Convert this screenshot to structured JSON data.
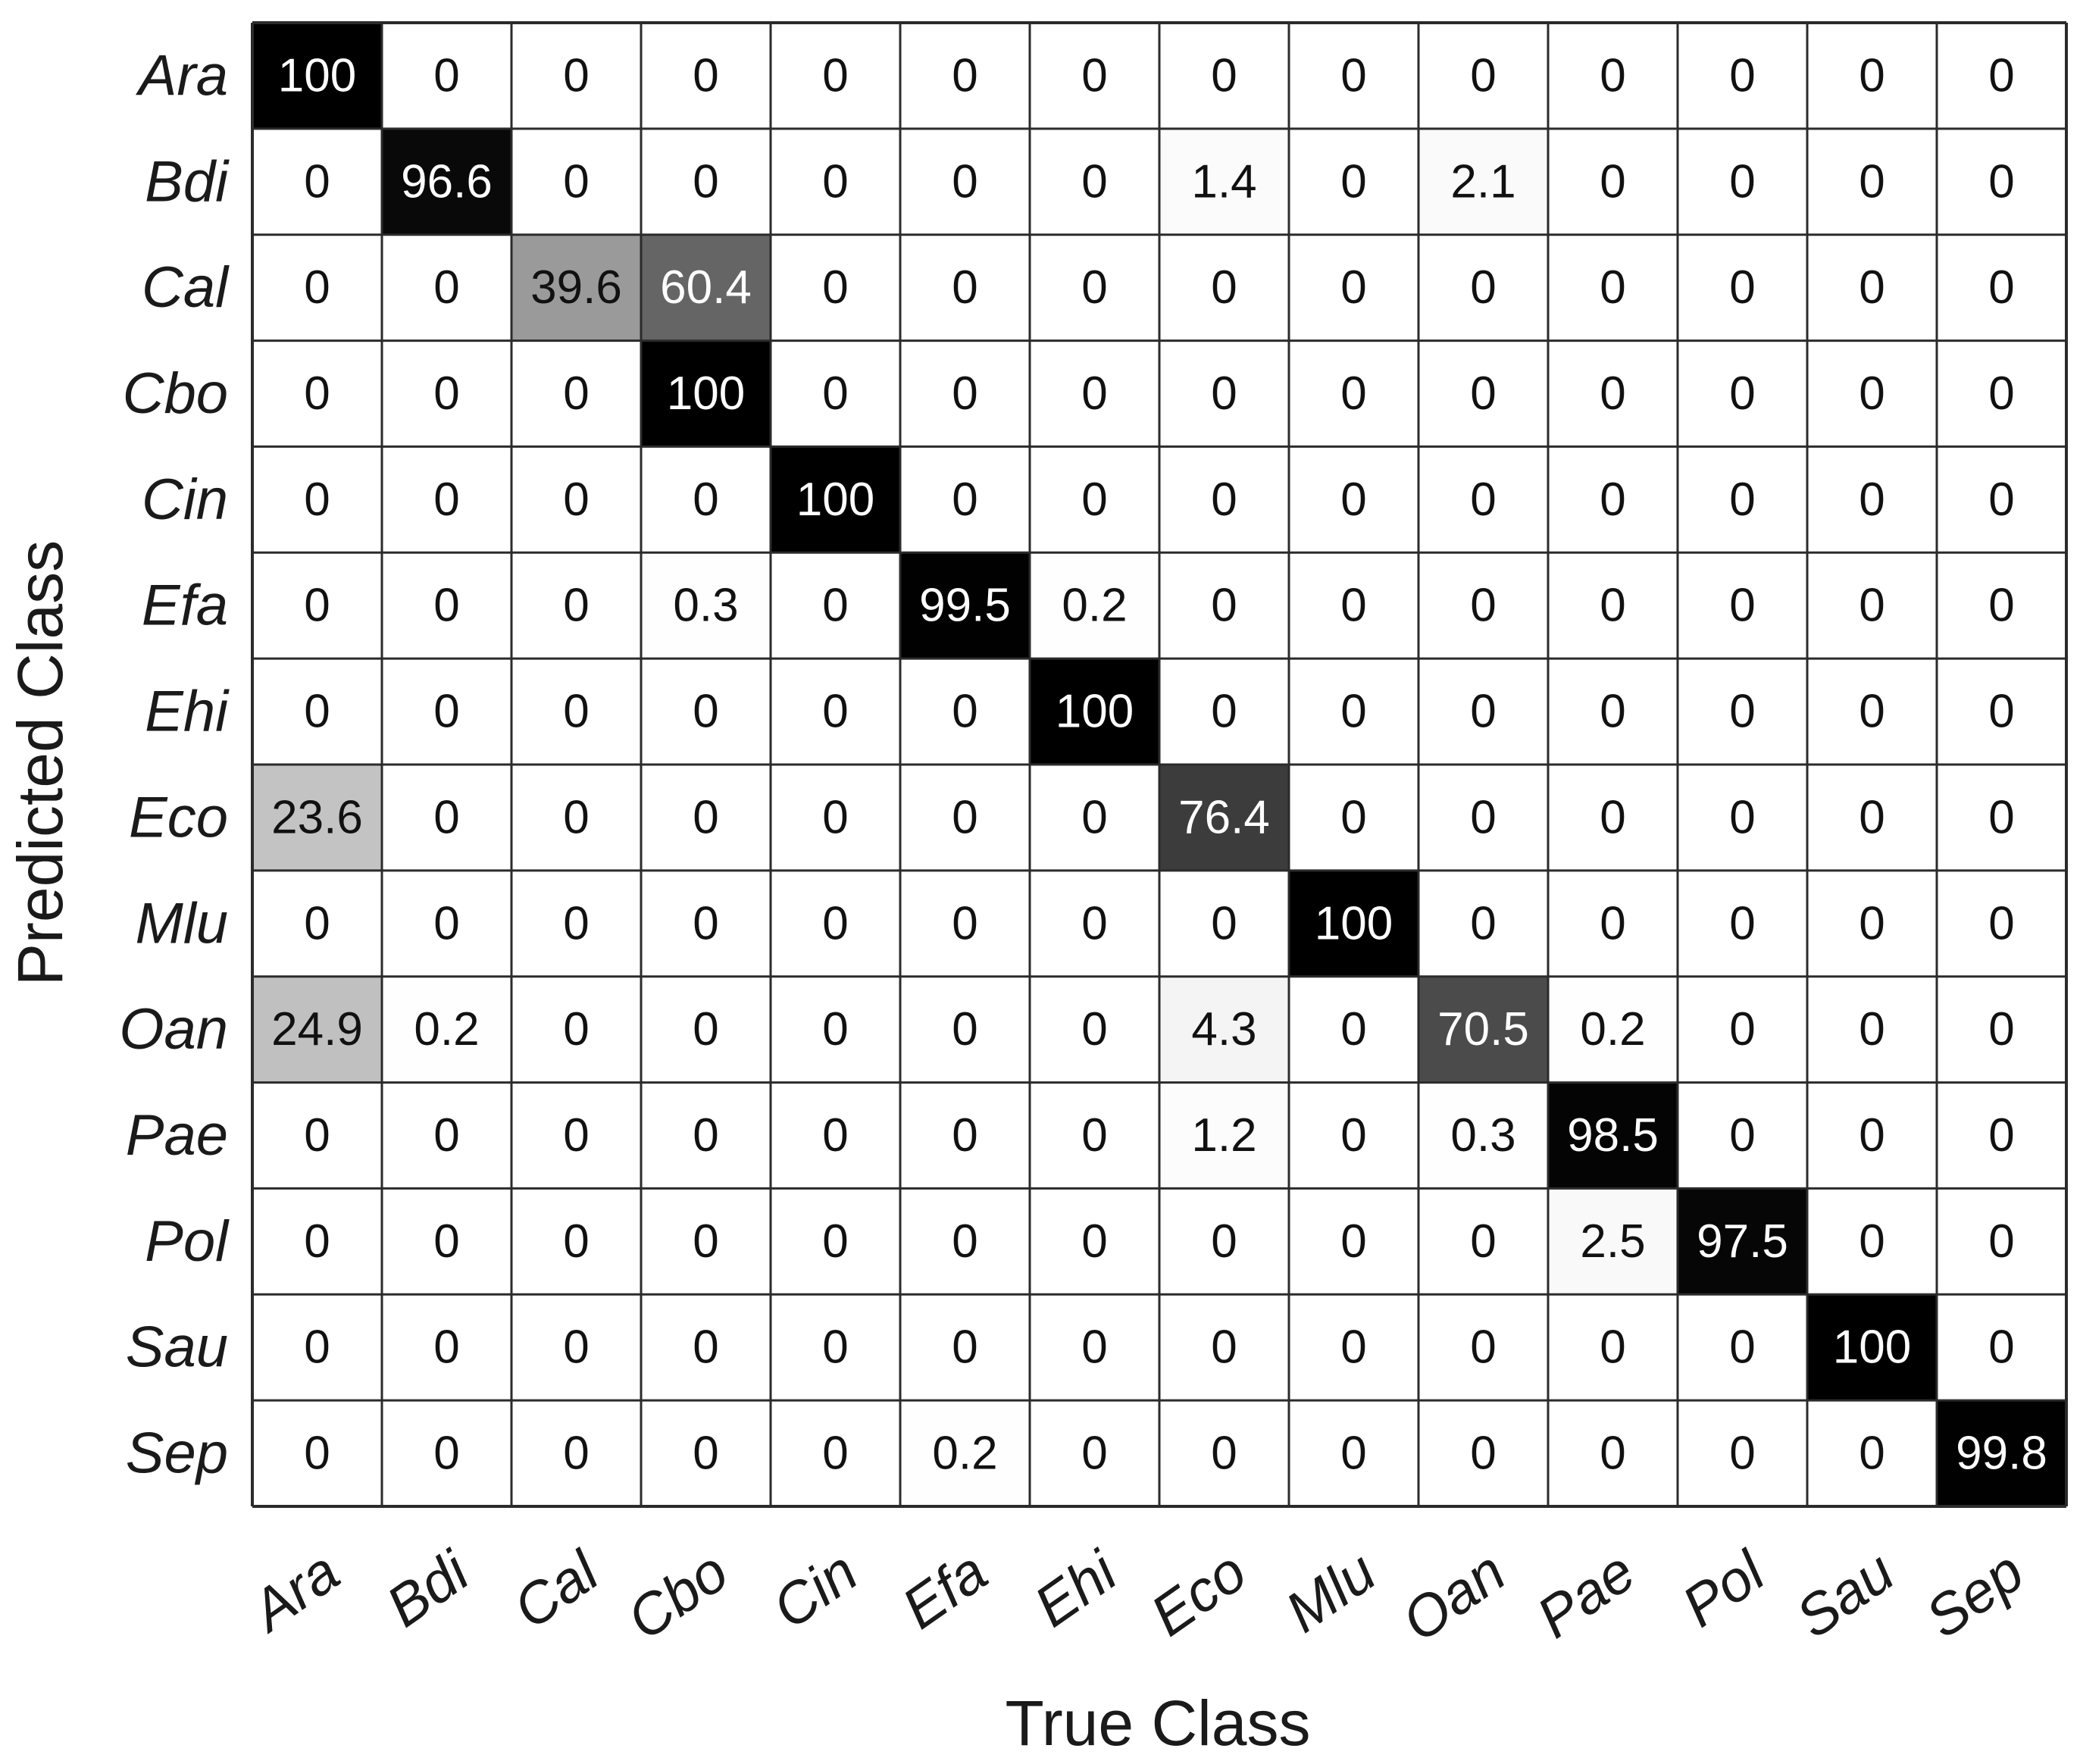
{
  "chart_data": {
    "type": "heatmap",
    "title": "",
    "xlabel": "True Class",
    "ylabel": "Predicted Class",
    "x_categories": [
      "Ara",
      "Bdi",
      "Cal",
      "Cbo",
      "Cin",
      "Efa",
      "Ehi",
      "Eco",
      "Mlu",
      "Oan",
      "Pae",
      "Pol",
      "Sau",
      "Sep"
    ],
    "y_categories": [
      "Ara",
      "Bdi",
      "Cal",
      "Cbo",
      "Cin",
      "Efa",
      "Ehi",
      "Eco",
      "Mlu",
      "Oan",
      "Pae",
      "Pol",
      "Sau",
      "Sep"
    ],
    "value_range": [
      0,
      100
    ],
    "colormap": "white-to-black",
    "grid": true,
    "values": [
      [
        100,
        0,
        0,
        0,
        0,
        0,
        0,
        0,
        0,
        0,
        0,
        0,
        0,
        0
      ],
      [
        0,
        96.6,
        0,
        0,
        0,
        0,
        0,
        1.4,
        0,
        2.1,
        0,
        0,
        0,
        0
      ],
      [
        0,
        0,
        39.6,
        60.4,
        0,
        0,
        0,
        0,
        0,
        0,
        0,
        0,
        0,
        0
      ],
      [
        0,
        0,
        0,
        100,
        0,
        0,
        0,
        0,
        0,
        0,
        0,
        0,
        0,
        0
      ],
      [
        0,
        0,
        0,
        0,
        100,
        0,
        0,
        0,
        0,
        0,
        0,
        0,
        0,
        0
      ],
      [
        0,
        0,
        0,
        0.3,
        0,
        99.5,
        0.2,
        0,
        0,
        0,
        0,
        0,
        0,
        0
      ],
      [
        0,
        0,
        0,
        0,
        0,
        0,
        100,
        0,
        0,
        0,
        0,
        0,
        0,
        0
      ],
      [
        23.6,
        0,
        0,
        0,
        0,
        0,
        0,
        76.4,
        0,
        0,
        0,
        0,
        0,
        0
      ],
      [
        0,
        0,
        0,
        0,
        0,
        0,
        0,
        0,
        100,
        0,
        0,
        0,
        0,
        0
      ],
      [
        24.9,
        0.2,
        0,
        0,
        0,
        0,
        0,
        4.3,
        0,
        70.5,
        0.2,
        0,
        0,
        0
      ],
      [
        0,
        0,
        0,
        0,
        0,
        0,
        0,
        1.2,
        0,
        0.3,
        98.5,
        0,
        0,
        0
      ],
      [
        0,
        0,
        0,
        0,
        0,
        0,
        0,
        0,
        0,
        0,
        2.5,
        97.5,
        0,
        0
      ],
      [
        0,
        0,
        0,
        0,
        0,
        0,
        0,
        0,
        0,
        0,
        0,
        0,
        100,
        0
      ],
      [
        0,
        0,
        0,
        0,
        0,
        0.2,
        0,
        0,
        0,
        0,
        0,
        0,
        0,
        99.8
      ]
    ]
  }
}
